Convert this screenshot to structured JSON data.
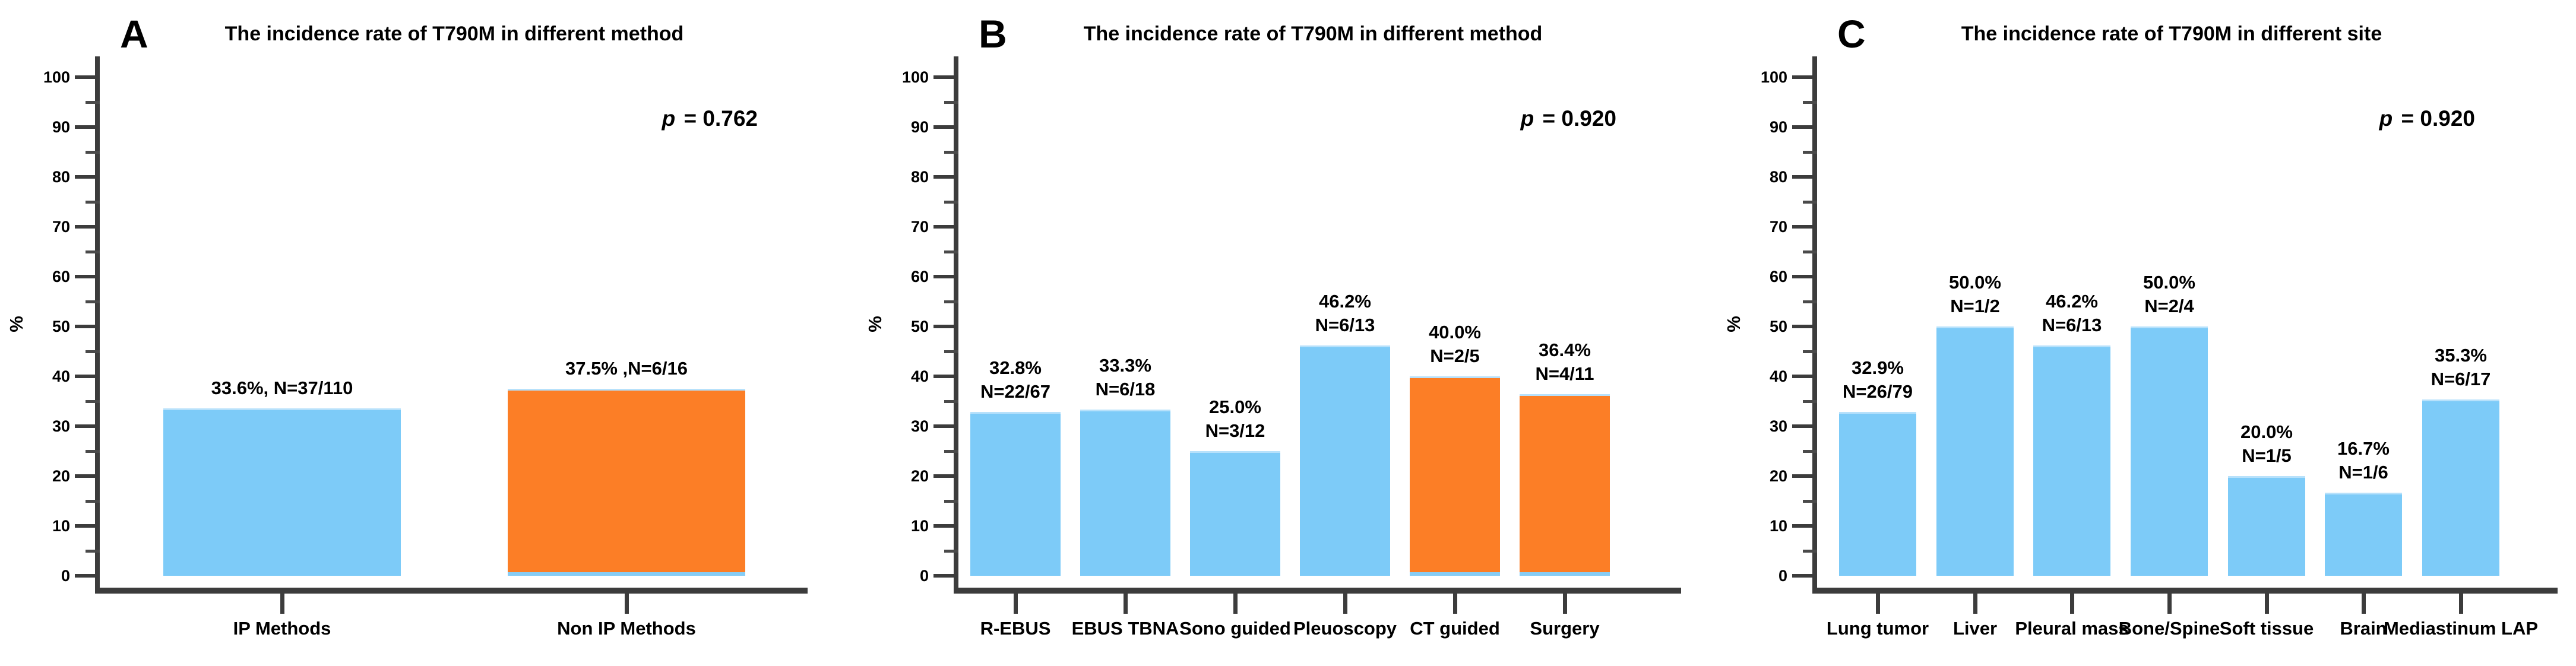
{
  "colors": {
    "bar_blue": "#7DCBF8",
    "bar_orange": "#FC7E26",
    "axis": "#3C3C3C",
    "text": "#000000",
    "background": "#FFFFFF"
  },
  "chart_data": [
    {
      "panel": "A",
      "type": "bar",
      "title": "The incidence rate of T790M in different method",
      "p_symbol": "p",
      "p_rest": " = 0.762",
      "p_text": "p = 0.762",
      "ylabel": "%",
      "ylim": [
        0,
        100
      ],
      "yticks": [
        0,
        10,
        20,
        30,
        40,
        50,
        60,
        70,
        80,
        90,
        100
      ],
      "minor_ticks": [
        5,
        15,
        25,
        35,
        45,
        55,
        65,
        75,
        85,
        95
      ],
      "grid": false,
      "legend": null,
      "categories": [
        "IP Methods",
        "Non IP Methods"
      ],
      "values": [
        33.6,
        37.5
      ],
      "bar_colors": [
        "#7DCBF8",
        "#FC7E26"
      ],
      "annotations": [
        [
          "33.6%, N=37/110"
        ],
        [
          "37.5% ,N=6/16"
        ]
      ]
    },
    {
      "panel": "B",
      "type": "bar",
      "title": "The incidence rate of T790M in different method",
      "p_symbol": "p",
      "p_rest": " = 0.920",
      "p_text": "p = 0.920",
      "ylabel": "%",
      "ylim": [
        0,
        100
      ],
      "yticks": [
        0,
        10,
        20,
        30,
        40,
        50,
        60,
        70,
        80,
        90,
        100
      ],
      "minor_ticks": [
        5,
        15,
        25,
        35,
        45,
        55,
        65,
        75,
        85,
        95
      ],
      "grid": false,
      "legend": null,
      "categories": [
        "R-EBUS",
        "EBUS TBNA",
        "Sono guided",
        "Pleuoscopy",
        "CT guided",
        "Surgery"
      ],
      "values": [
        32.8,
        33.3,
        25.0,
        46.2,
        40.0,
        36.4
      ],
      "bar_colors": [
        "#7DCBF8",
        "#7DCBF8",
        "#7DCBF8",
        "#7DCBF8",
        "#FC7E26",
        "#FC7E26"
      ],
      "annotations": [
        [
          "32.8%",
          "N=22/67"
        ],
        [
          "33.3%",
          "N=6/18"
        ],
        [
          "25.0%",
          "N=3/12"
        ],
        [
          "46.2%",
          "N=6/13"
        ],
        [
          "40.0%",
          "N=2/5"
        ],
        [
          "36.4%",
          "N=4/11"
        ]
      ]
    },
    {
      "panel": "C",
      "type": "bar",
      "title": "The incidence rate of T790M in different site",
      "p_symbol": "p",
      "p_rest": " = 0.920",
      "p_text": "p = 0.920",
      "ylabel": "%",
      "ylim": [
        0,
        100
      ],
      "yticks": [
        0,
        10,
        20,
        30,
        40,
        50,
        60,
        70,
        80,
        90,
        100
      ],
      "minor_ticks": [
        5,
        15,
        25,
        35,
        45,
        55,
        65,
        75,
        85,
        95
      ],
      "grid": false,
      "legend": null,
      "categories": [
        "Lung tumor",
        "Liver",
        "Pleural mass",
        "Bone/Spine",
        "Soft tissue",
        "Brain",
        "Mediastinum LAP"
      ],
      "values": [
        32.9,
        50.0,
        46.2,
        50.0,
        20.0,
        16.7,
        35.3
      ],
      "bar_colors": [
        "#7DCBF8",
        "#7DCBF8",
        "#7DCBF8",
        "#7DCBF8",
        "#7DCBF8",
        "#7DCBF8",
        "#7DCBF8"
      ],
      "annotations": [
        [
          "32.9%",
          "N=26/79"
        ],
        [
          "50.0%",
          "N=1/2"
        ],
        [
          "46.2%",
          "N=6/13"
        ],
        [
          "50.0%",
          "N=2/4"
        ],
        [
          "20.0%",
          "N=1/5"
        ],
        [
          "16.7%",
          "N=1/6"
        ],
        [
          "35.3%",
          "N=6/17"
        ]
      ]
    }
  ]
}
